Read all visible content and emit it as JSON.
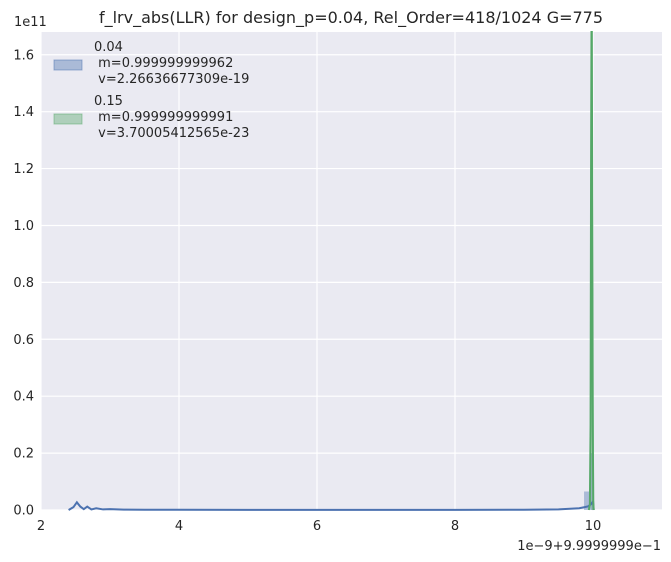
{
  "chart_data": {
    "type": "histogram-kde",
    "title": "f_lrv_abs(LLR) for design_p=0.04, Rel_Order=418/1024 G=775",
    "xlabel": "",
    "ylabel": "",
    "x_offset_label": "1e−9+9.9999999e−1",
    "y_scale_label": "1e11",
    "xlim": [
      2,
      11
    ],
    "ylim": [
      0,
      1.68
    ],
    "x_ticks": [
      {
        "value": 2,
        "label": "2"
      },
      {
        "value": 4,
        "label": "4"
      },
      {
        "value": 6,
        "label": "6"
      },
      {
        "value": 8,
        "label": "8"
      },
      {
        "value": 10,
        "label": "10"
      }
    ],
    "y_ticks": [
      {
        "value": 0.0,
        "label": "0.0"
      },
      {
        "value": 0.2,
        "label": "0.2"
      },
      {
        "value": 0.4,
        "label": "0.4"
      },
      {
        "value": 0.6,
        "label": "0.6"
      },
      {
        "value": 0.8,
        "label": "0.8"
      },
      {
        "value": 1.0,
        "label": "1.0"
      },
      {
        "value": 1.2,
        "label": "1.2"
      },
      {
        "value": 1.4,
        "label": "1.4"
      },
      {
        "value": 1.6,
        "label": "1.6"
      }
    ],
    "grid": true,
    "legend_position": "top-left",
    "series": [
      {
        "name": "0.04",
        "legend_lines": [
          "0.04",
          " m=0.999999999962",
          " v=2.26636677309e-19"
        ],
        "color": "#4c72b0",
        "bars": [
          {
            "x0": 9.87,
            "x1": 9.95,
            "height": 0.065
          },
          {
            "x0": 9.95,
            "x1": 10.0,
            "height": 0.2
          }
        ],
        "kde": [
          [
            2.4,
            0.0
          ],
          [
            2.47,
            0.01
          ],
          [
            2.52,
            0.027
          ],
          [
            2.57,
            0.012
          ],
          [
            2.62,
            0.003
          ],
          [
            2.67,
            0.012
          ],
          [
            2.73,
            0.002
          ],
          [
            2.8,
            0.006
          ],
          [
            2.9,
            0.002
          ],
          [
            3.0,
            0.003
          ],
          [
            3.2,
            0.0015
          ],
          [
            3.5,
            0.001
          ],
          [
            4.0,
            0.0008
          ],
          [
            5.0,
            0.0006
          ],
          [
            6.0,
            0.0005
          ],
          [
            7.0,
            0.0005
          ],
          [
            8.0,
            0.0006
          ],
          [
            9.0,
            0.001
          ],
          [
            9.5,
            0.002
          ],
          [
            9.7,
            0.005
          ],
          [
            9.8,
            0.006
          ],
          [
            9.88,
            0.01
          ],
          [
            9.93,
            0.013
          ],
          [
            9.97,
            0.02
          ],
          [
            10.0,
            0.03
          ],
          [
            10.01,
            0.0
          ]
        ]
      },
      {
        "name": "0.15",
        "legend_lines": [
          "0.15",
          " m=0.999999999991",
          " v=3.70005412565e-23"
        ],
        "color": "#55a868",
        "bars": [
          {
            "x0": 9.975,
            "x1": 9.99,
            "height": 1.68
          },
          {
            "x0": 9.99,
            "x1": 10.005,
            "height": 0.78
          }
        ],
        "kde": [
          [
            9.94,
            0.0
          ],
          [
            9.955,
            0.02
          ],
          [
            9.965,
            0.3
          ],
          [
            9.972,
            1.2
          ],
          [
            9.978,
            1.68
          ],
          [
            9.983,
            1.68
          ],
          [
            9.988,
            1.1
          ],
          [
            9.992,
            0.77
          ],
          [
            9.996,
            0.4
          ],
          [
            10.0,
            0.17
          ],
          [
            10.004,
            0.03
          ],
          [
            10.01,
            0.0
          ]
        ]
      }
    ]
  }
}
